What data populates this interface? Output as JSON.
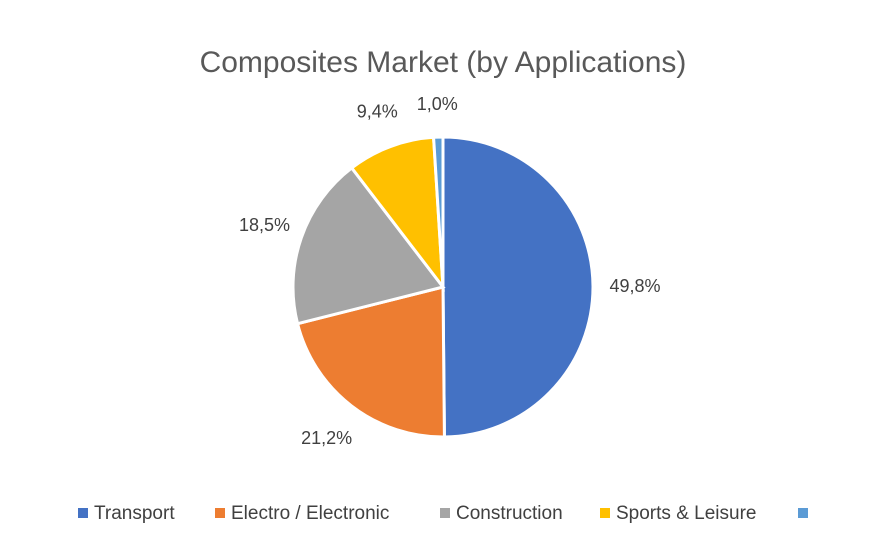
{
  "chart_data": {
    "type": "pie",
    "title": "Composites Market (by Applications)",
    "categories": [
      "Transport",
      "Electro / Electronic",
      "Construction",
      "Sports & Leisure",
      ""
    ],
    "values": [
      49.8,
      21.2,
      18.5,
      9.4,
      1.0
    ],
    "data_labels": [
      "49,8%",
      "21,2%",
      "18,5%",
      "9,4%",
      "1,0%"
    ],
    "colors": [
      "#4472C4",
      "#ED7D31",
      "#A5A5A5",
      "#FFC000",
      "#5B9BD5"
    ],
    "unit": "%",
    "legend_position": "bottom",
    "start_angle_deg": 0,
    "direction": "clockwise"
  }
}
